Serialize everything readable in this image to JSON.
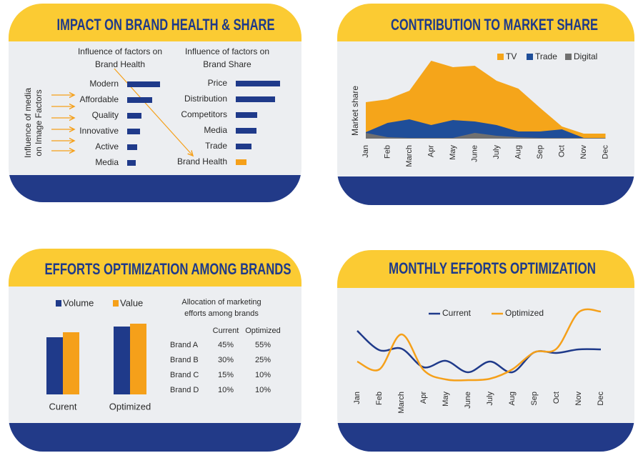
{
  "chart_data": [
    {
      "type": "barh",
      "title": "IMPACT ON BRAND HEALTH & SHARE",
      "side_label": [
        "Influence of media",
        "on Image Factors"
      ],
      "subtitle": [
        "Influence of factors on",
        "Brand Health"
      ],
      "categories": [
        "Modern",
        "Affordable",
        "Quality",
        "Innovative",
        "Active",
        "Media"
      ],
      "values": [
        46,
        35,
        20,
        18,
        14,
        12
      ],
      "color": "#1f3a8a",
      "xlim": [
        0,
        70
      ]
    },
    {
      "type": "barh",
      "subtitle": [
        "Influence of factors on",
        "Brand Share"
      ],
      "categories": [
        "Price",
        "Distribution",
        "Competitors",
        "Media",
        "Trade",
        "Brand Health"
      ],
      "values": [
        62,
        55,
        30,
        29,
        22,
        15
      ],
      "colors": [
        "#1f3a8a",
        "#1f3a8a",
        "#1f3a8a",
        "#1f3a8a",
        "#1f3a8a",
        "#f5a01a"
      ],
      "xlim": [
        0,
        70
      ]
    },
    {
      "type": "area",
      "title": "CONTRIBUTION TO MARKET SHARE",
      "y_label": "Market share",
      "categories": [
        "Jan",
        "Feb",
        "March",
        "Apr",
        "May",
        "June",
        "July",
        "Aug",
        "Sep",
        "Oct",
        "Nov",
        "Dec"
      ],
      "series": [
        {
          "name": "TV",
          "color": "#f5a51a",
          "values": [
            51,
            55,
            67,
            109,
            100,
            102,
            81,
            70,
            43,
            17,
            7,
            7
          ]
        },
        {
          "name": "Trade",
          "color": "#1f4e99",
          "values": [
            9,
            22,
            27,
            19,
            26,
            24,
            19,
            10,
            10,
            13,
            1,
            1
          ]
        },
        {
          "name": "Digital",
          "color": "#707070",
          "values": [
            8,
            2,
            1,
            1,
            1,
            8,
            4,
            2,
            1,
            1,
            1,
            1
          ]
        }
      ],
      "ylim": [
        0,
        120
      ]
    },
    {
      "type": "groupbar",
      "title": "EFFORTS OPTIMIZATION AMONG BRANDS",
      "categories": [
        "Curent",
        "Optimized"
      ],
      "series": [
        {
          "name": "Volume",
          "color": "#1f3a8a",
          "values": [
            80,
            95
          ]
        },
        {
          "name": "Value",
          "color": "#f5a01a",
          "values": [
            87,
            99
          ]
        }
      ],
      "ylim": [
        0,
        110
      ]
    },
    {
      "type": "table",
      "caption": [
        "Allocation of marketing",
        "efforts among brands"
      ],
      "columns": [
        "Current",
        "Optimized"
      ],
      "rows": [
        {
          "label": "Brand A",
          "cells": [
            "45%",
            "55%"
          ]
        },
        {
          "label": "Brand B",
          "cells": [
            "30%",
            "25%"
          ]
        },
        {
          "label": "Brand C",
          "cells": [
            "15%",
            "10%"
          ]
        },
        {
          "label": "Brand D",
          "cells": [
            "10%",
            "10%"
          ]
        }
      ]
    },
    {
      "type": "line",
      "title": "MONTHLY EFFORTS OPTIMIZATION",
      "categories": [
        "Jan",
        "Feb",
        "March",
        "Apr",
        "May",
        "June",
        "July",
        "Aug",
        "Sep",
        "Oct",
        "Nov",
        "Dec"
      ],
      "series": [
        {
          "name": "Current",
          "color": "#1f3a8a",
          "values": [
            82,
            55,
            57,
            31,
            40,
            24,
            39,
            24,
            52,
            51,
            56,
            56
          ]
        },
        {
          "name": "Optimized",
          "color": "#f5a01a",
          "values": [
            39,
            28,
            77,
            27,
            14,
            13,
            15,
            28,
            52,
            57,
            108,
            109
          ]
        }
      ],
      "ylim": [
        0,
        120
      ]
    }
  ]
}
